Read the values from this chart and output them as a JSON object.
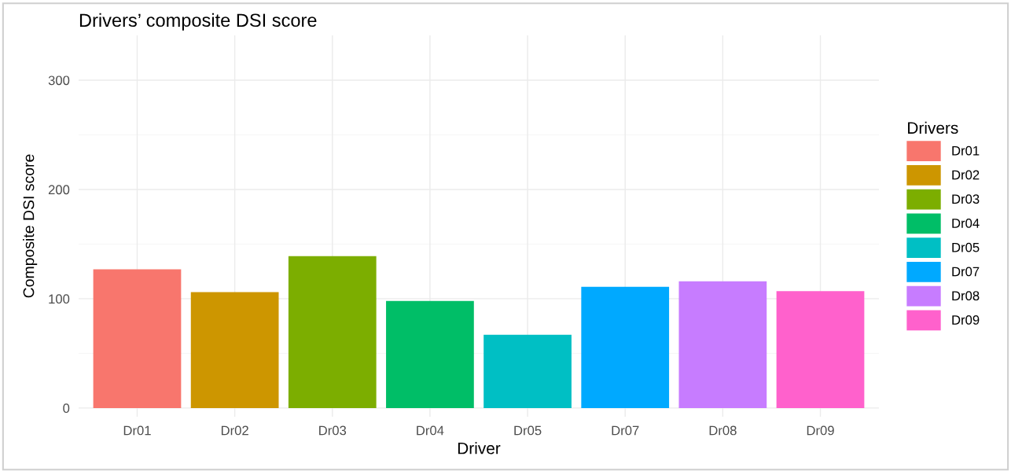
{
  "chart_data": {
    "type": "bar",
    "title": "Drivers’ composite DSI score",
    "xlabel": "Driver",
    "ylabel": "Composite DSI score",
    "legend_title": "Drivers",
    "categories": [
      "Dr01",
      "Dr02",
      "Dr03",
      "Dr04",
      "Dr05",
      "Dr07",
      "Dr08",
      "Dr09"
    ],
    "series": [
      {
        "name": "Dr01",
        "color": "#f8766d",
        "values": [
          127,
          null,
          null,
          null,
          null,
          null,
          null,
          null
        ]
      },
      {
        "name": "Dr02",
        "color": "#cd9600",
        "values": [
          null,
          106,
          null,
          null,
          null,
          null,
          null,
          null
        ]
      },
      {
        "name": "Dr03",
        "color": "#7cae00",
        "values": [
          null,
          null,
          139,
          null,
          null,
          null,
          null,
          null
        ]
      },
      {
        "name": "Dr04",
        "color": "#00be67",
        "values": [
          null,
          null,
          null,
          98,
          null,
          null,
          null,
          null
        ]
      },
      {
        "name": "Dr05",
        "color": "#00bfc4",
        "values": [
          null,
          null,
          null,
          null,
          67,
          null,
          null,
          null
        ]
      },
      {
        "name": "Dr07",
        "color": "#00a9ff",
        "values": [
          null,
          null,
          null,
          null,
          null,
          111,
          null,
          null
        ]
      },
      {
        "name": "Dr08",
        "color": "#c77cff",
        "values": [
          null,
          null,
          null,
          null,
          null,
          null,
          116,
          null
        ]
      },
      {
        "name": "Dr09",
        "color": "#ff61cc",
        "values": [
          null,
          null,
          null,
          null,
          null,
          null,
          null,
          107
        ]
      }
    ],
    "ylim": [
      -8,
      341
    ],
    "yticks": [
      0,
      100,
      200,
      300
    ],
    "grid": true,
    "legend": "right"
  }
}
